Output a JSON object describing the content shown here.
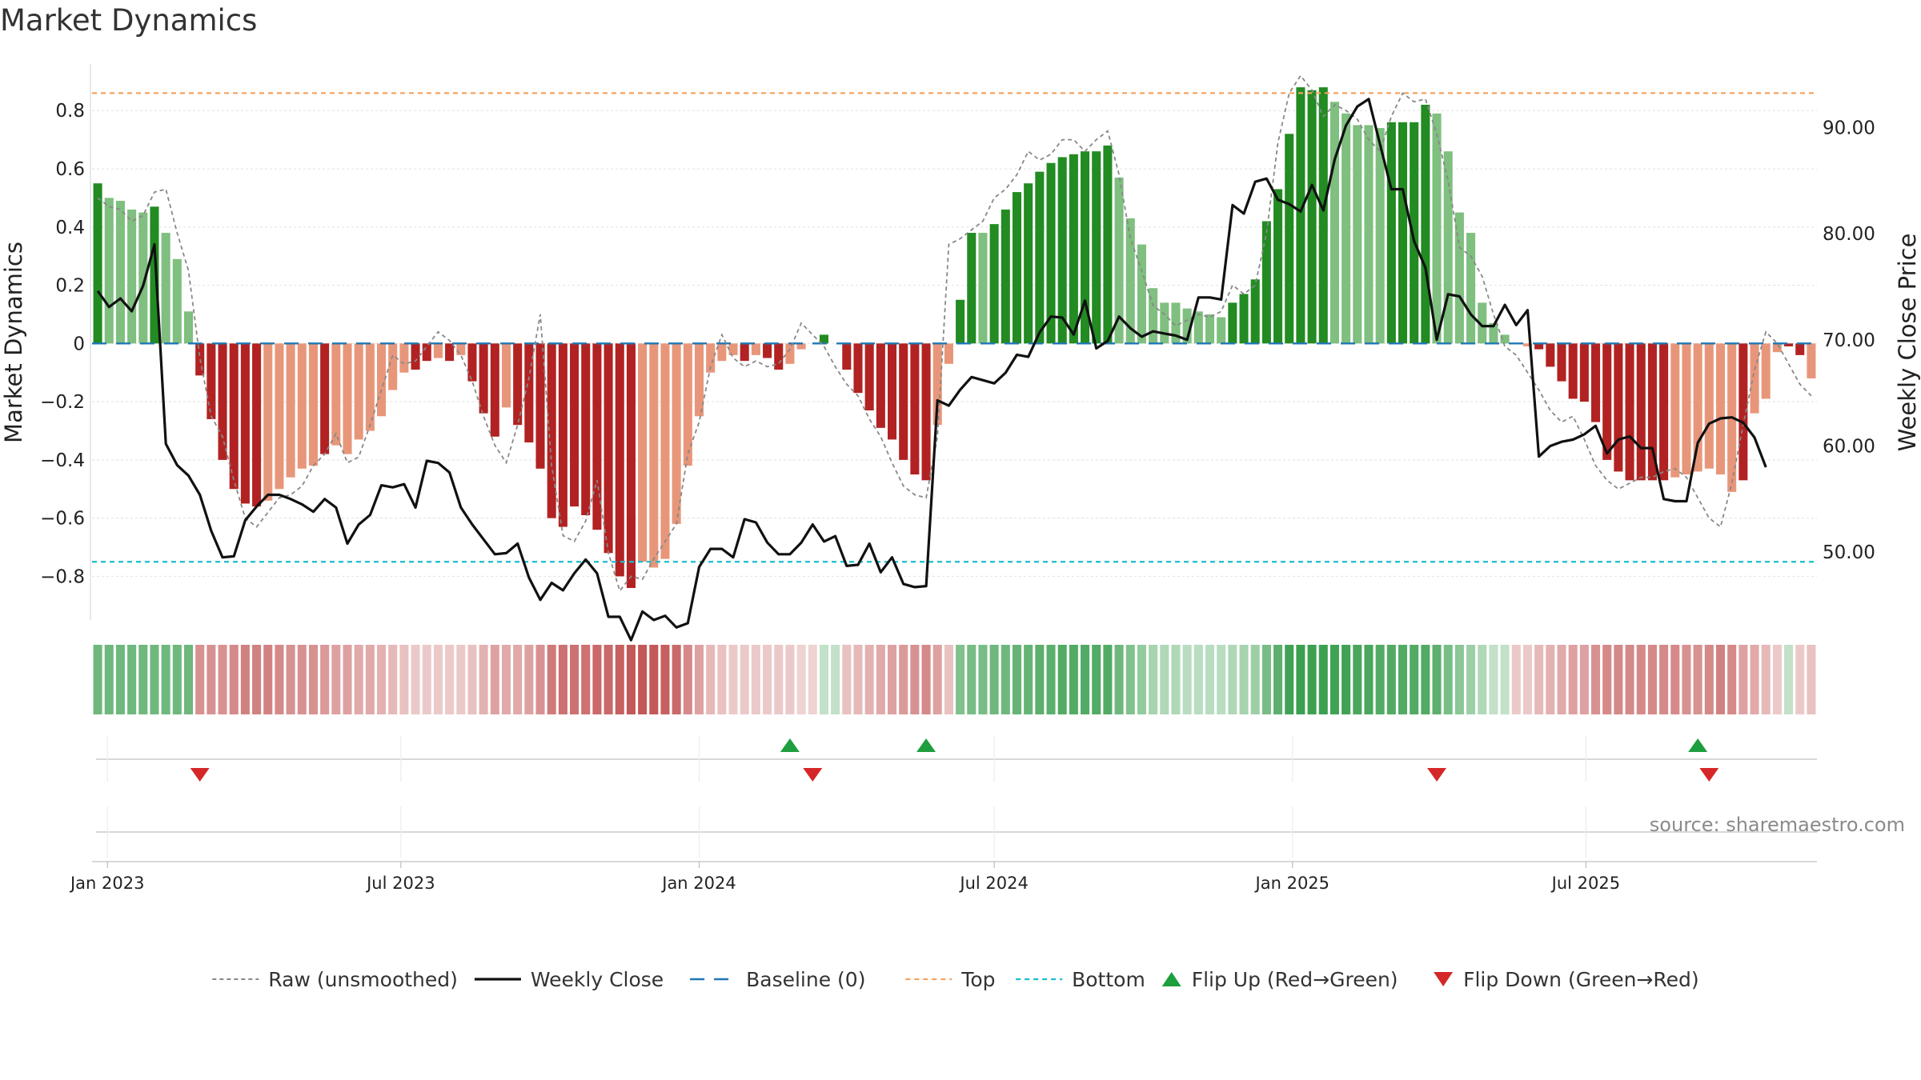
{
  "title": "Market Dynamics",
  "source": "source: sharemaestro.com",
  "colors": {
    "strong_green": "#228b22",
    "light_green": "#7fbf7f",
    "strong_red": "#b22222",
    "light_red": "#e8967a",
    "raw": "#888888",
    "close": "#111111",
    "baseline": "#1f77b4",
    "top": "#f4a460",
    "bottom": "#17becf",
    "flip_up": "#1e9e3e",
    "flip_down": "#d62728"
  },
  "chart_data": {
    "type": "bar",
    "title": "Market Dynamics",
    "ylabel": "Market Dynamics",
    "ylabel_right": "Weekly Close Price",
    "ylim": [
      -0.95,
      0.96
    ],
    "ylim_right": [
      43.6,
      96.0
    ],
    "yticks": [
      0.8,
      0.6,
      0.4,
      0.2,
      0,
      -0.2,
      -0.4,
      -0.6,
      -0.8
    ],
    "ytick_labels": [
      "0.8",
      "0.6",
      "0.4",
      "0.2",
      "0",
      "−0.2",
      "−0.4",
      "−0.6",
      "−0.8"
    ],
    "yticks_right": [
      90,
      80,
      70,
      60,
      50
    ],
    "ytick_right_labels": [
      "90.00",
      "80.00",
      "70.00",
      "60.00",
      "50.00"
    ],
    "x_start": "2022-12-26",
    "x_step_days": 7,
    "xticks": [
      {
        "label": "Jan 2023",
        "date": "2023-01-01"
      },
      {
        "label": "Jul 2023",
        "date": "2023-07-01"
      },
      {
        "label": "Jan 2024",
        "date": "2024-01-01"
      },
      {
        "label": "Jul 2024",
        "date": "2024-07-01"
      },
      {
        "label": "Jan 2025",
        "date": "2025-01-01"
      },
      {
        "label": "Jul 2025",
        "date": "2025-07-01"
      }
    ],
    "top_line": 0.86,
    "bottom_line": -0.75,
    "baseline": 0,
    "grid": true,
    "legend_position": "bottom",
    "bars": [
      0.55,
      0.5,
      0.49,
      0.46,
      0.45,
      0.47,
      0.38,
      0.29,
      0.11,
      -0.11,
      -0.26,
      -0.4,
      -0.5,
      -0.55,
      -0.56,
      -0.54,
      -0.5,
      -0.46,
      -0.43,
      -0.42,
      -0.38,
      -0.35,
      -0.38,
      -0.33,
      -0.3,
      -0.25,
      -0.16,
      -0.1,
      -0.09,
      -0.06,
      -0.05,
      -0.06,
      -0.04,
      -0.13,
      -0.24,
      -0.32,
      -0.22,
      -0.28,
      -0.34,
      -0.43,
      -0.6,
      -0.63,
      -0.56,
      -0.59,
      -0.64,
      -0.72,
      -0.8,
      -0.84,
      -0.75,
      -0.77,
      -0.74,
      -0.62,
      -0.42,
      -0.25,
      -0.1,
      -0.06,
      -0.04,
      -0.06,
      -0.04,
      -0.05,
      -0.09,
      -0.07,
      -0.02,
      0.0,
      0.03,
      0.0,
      -0.09,
      -0.17,
      -0.23,
      -0.29,
      -0.33,
      -0.4,
      -0.45,
      -0.47,
      -0.28,
      -0.07,
      0.15,
      0.38,
      0.38,
      0.41,
      0.46,
      0.52,
      0.55,
      0.59,
      0.62,
      0.64,
      0.65,
      0.66,
      0.66,
      0.68,
      0.57,
      0.43,
      0.34,
      0.19,
      0.14,
      0.14,
      0.12,
      0.11,
      0.1,
      0.09,
      0.14,
      0.17,
      0.22,
      0.42,
      0.53,
      0.72,
      0.88,
      0.87,
      0.88,
      0.83,
      0.79,
      0.75,
      0.75,
      0.74,
      0.76,
      0.76,
      0.76,
      0.82,
      0.79,
      0.66,
      0.45,
      0.38,
      0.14,
      0.07,
      0.03,
      0.0,
      -0.01,
      -0.02,
      -0.08,
      -0.13,
      -0.19,
      -0.2,
      -0.27,
      -0.4,
      -0.44,
      -0.47,
      -0.47,
      -0.47,
      -0.47,
      -0.46,
      -0.45,
      -0.44,
      -0.43,
      -0.45,
      -0.51,
      -0.47,
      -0.24,
      -0.19,
      -0.03,
      -0.01,
      -0.04,
      -0.12
    ],
    "bar_strong": [
      1,
      0,
      0,
      0,
      0,
      1,
      0,
      0,
      0,
      1,
      1,
      1,
      1,
      1,
      1,
      0,
      0,
      0,
      0,
      0,
      1,
      0,
      0,
      0,
      0,
      0,
      0,
      0,
      1,
      1,
      0,
      1,
      0,
      1,
      1,
      1,
      0,
      1,
      1,
      1,
      1,
      1,
      1,
      1,
      1,
      1,
      1,
      1,
      0,
      0,
      0,
      0,
      0,
      0,
      0,
      0,
      0,
      1,
      0,
      1,
      1,
      0,
      0,
      0,
      1,
      0,
      1,
      1,
      1,
      1,
      1,
      1,
      1,
      1,
      0,
      0,
      1,
      1,
      0,
      1,
      1,
      1,
      1,
      1,
      1,
      1,
      1,
      1,
      1,
      1,
      0,
      0,
      0,
      0,
      0,
      0,
      0,
      0,
      0,
      0,
      1,
      1,
      1,
      1,
      1,
      1,
      1,
      1,
      1,
      0,
      0,
      0,
      0,
      0,
      1,
      1,
      1,
      1,
      0,
      0,
      0,
      0,
      0,
      0,
      0,
      0,
      0,
      1,
      1,
      1,
      1,
      1,
      1,
      1,
      1,
      1,
      1,
      1,
      1,
      0,
      0,
      0,
      0,
      0,
      0,
      1,
      0,
      0,
      0,
      1,
      1
    ],
    "raw": [
      0.5,
      0.47,
      0.46,
      0.42,
      0.44,
      0.52,
      0.53,
      0.38,
      0.25,
      -0.05,
      -0.25,
      -0.32,
      -0.47,
      -0.6,
      -0.63,
      -0.58,
      -0.53,
      -0.52,
      -0.49,
      -0.42,
      -0.38,
      -0.31,
      -0.41,
      -0.39,
      -0.28,
      -0.16,
      -0.04,
      -0.07,
      -0.06,
      -0.01,
      0.04,
      0.01,
      -0.04,
      -0.13,
      -0.25,
      -0.35,
      -0.41,
      -0.28,
      -0.12,
      0.1,
      -0.42,
      -0.66,
      -0.68,
      -0.61,
      -0.47,
      -0.72,
      -0.85,
      -0.8,
      -0.81,
      -0.74,
      -0.68,
      -0.62,
      -0.38,
      -0.27,
      -0.08,
      0.03,
      -0.05,
      -0.08,
      -0.06,
      -0.08,
      -0.07,
      -0.02,
      0.07,
      0.03,
      -0.01,
      -0.08,
      -0.14,
      -0.18,
      -0.26,
      -0.32,
      -0.41,
      -0.49,
      -0.52,
      -0.53,
      -0.32,
      0.34,
      0.36,
      0.39,
      0.42,
      0.5,
      0.53,
      0.58,
      0.66,
      0.63,
      0.65,
      0.7,
      0.7,
      0.66,
      0.7,
      0.73,
      0.58,
      0.36,
      0.25,
      0.13,
      0.1,
      0.06,
      0.08,
      0.1,
      0.09,
      0.11,
      0.2,
      0.17,
      0.2,
      0.38,
      0.69,
      0.86,
      0.92,
      0.87,
      0.78,
      0.82,
      0.8,
      0.77,
      0.7,
      0.66,
      0.78,
      0.86,
      0.83,
      0.84,
      0.72,
      0.56,
      0.33,
      0.3,
      0.23,
      0.1,
      -0.01,
      -0.04,
      -0.1,
      -0.16,
      -0.23,
      -0.27,
      -0.25,
      -0.33,
      -0.42,
      -0.47,
      -0.5,
      -0.48,
      -0.46,
      -0.46,
      -0.44,
      -0.43,
      -0.46,
      -0.53,
      -0.6,
      -0.63,
      -0.48,
      -0.28,
      -0.09,
      0.04,
      0.0,
      -0.07,
      -0.14,
      -0.18
    ],
    "close": [
      74.6,
      73.1,
      73.9,
      72.7,
      75.1,
      79.0,
      60.2,
      58.2,
      57.2,
      55.4,
      52.0,
      49.5,
      49.6,
      53.0,
      54.3,
      55.4,
      55.4,
      55.0,
      54.5,
      53.8,
      55.0,
      54.2,
      50.8,
      52.6,
      53.5,
      56.3,
      56.1,
      56.4,
      54.2,
      58.6,
      58.4,
      57.5,
      54.2,
      52.6,
      51.2,
      49.8,
      49.9,
      50.8,
      47.6,
      45.5,
      47.1,
      46.4,
      48.0,
      49.3,
      48.0,
      43.9,
      43.9,
      41.7,
      44.4,
      43.6,
      44.0,
      42.9,
      43.3,
      48.6,
      50.3,
      50.3,
      49.5,
      53.1,
      52.8,
      50.9,
      49.8,
      49.8,
      50.9,
      52.6,
      51.0,
      51.5,
      48.7,
      48.8,
      50.8,
      48.1,
      49.5,
      47.0,
      46.7,
      46.8,
      64.3,
      63.8,
      65.3,
      66.5,
      66.2,
      65.9,
      66.9,
      68.6,
      68.4,
      70.7,
      72.2,
      72.1,
      70.5,
      73.7,
      69.2,
      69.9,
      72.2,
      71.1,
      70.3,
      70.8,
      70.6,
      70.4,
      70.0,
      74.0,
      74.0,
      73.8,
      82.7,
      81.9,
      84.9,
      85.2,
      83.2,
      82.8,
      82.1,
      84.6,
      82.2,
      87.0,
      90.2,
      92.0,
      92.7,
      88.4,
      84.2,
      84.2,
      79.3,
      76.8,
      70.0,
      74.3,
      74.1,
      72.4,
      71.3,
      71.3,
      73.3,
      71.4,
      72.8,
      59.0,
      60.0,
      60.4,
      60.6,
      61.1,
      61.9,
      59.3,
      60.6,
      60.9,
      59.8,
      59.8,
      55.0,
      54.8,
      54.8,
      60.3,
      62.1,
      62.6,
      62.7,
      62.2,
      60.8,
      58.0
    ],
    "heat_strip": [
      0.55,
      0.55,
      0.55,
      0.55,
      0.55,
      0.55,
      0.55,
      0.55,
      0.55,
      -0.45,
      -0.45,
      -0.45,
      -0.5,
      -0.55,
      -0.55,
      -0.55,
      -0.5,
      -0.45,
      -0.45,
      -0.45,
      -0.4,
      -0.35,
      -0.35,
      -0.3,
      -0.3,
      -0.25,
      -0.2,
      -0.15,
      -0.1,
      -0.1,
      -0.1,
      -0.1,
      -0.1,
      -0.15,
      -0.25,
      -0.35,
      -0.3,
      -0.3,
      -0.35,
      -0.45,
      -0.6,
      -0.65,
      -0.65,
      -0.65,
      -0.7,
      -0.7,
      -0.75,
      -0.8,
      -0.8,
      -0.8,
      -0.75,
      -0.7,
      -0.5,
      -0.35,
      -0.2,
      -0.15,
      -0.1,
      -0.1,
      -0.1,
      -0.1,
      -0.1,
      -0.1,
      -0.05,
      -0.05,
      0.1,
      0.1,
      -0.15,
      -0.2,
      -0.25,
      -0.3,
      -0.35,
      -0.4,
      -0.45,
      -0.5,
      -0.35,
      -0.15,
      0.45,
      0.5,
      0.5,
      0.55,
      0.55,
      0.6,
      0.6,
      0.65,
      0.65,
      0.7,
      0.7,
      0.7,
      0.7,
      0.7,
      0.55,
      0.45,
      0.35,
      0.25,
      0.2,
      0.2,
      0.15,
      0.15,
      0.15,
      0.15,
      0.2,
      0.25,
      0.3,
      0.5,
      0.65,
      0.8,
      0.85,
      0.85,
      0.85,
      0.8,
      0.8,
      0.75,
      0.75,
      0.7,
      0.7,
      0.7,
      0.7,
      0.7,
      0.65,
      0.5,
      0.4,
      0.3,
      0.2,
      0.1,
      0.1,
      -0.1,
      -0.1,
      -0.2,
      -0.25,
      -0.3,
      -0.35,
      -0.35,
      -0.45,
      -0.5,
      -0.5,
      -0.5,
      -0.5,
      -0.5,
      -0.5,
      -0.5,
      -0.45,
      -0.45,
      -0.5,
      -0.55,
      -0.5,
      -0.35,
      -0.3,
      -0.2,
      -0.1,
      0.1,
      -0.1,
      -0.15
    ],
    "flip_up_index": [
      61,
      73,
      141
    ],
    "flip_down_index": [
      9,
      63,
      118,
      142
    ],
    "legend": [
      {
        "label": "Raw (unsmoothed)",
        "key": "raw"
      },
      {
        "label": "Weekly Close",
        "key": "close"
      },
      {
        "label": "Baseline (0)",
        "key": "baseline"
      },
      {
        "label": "Top",
        "key": "top"
      },
      {
        "label": "Bottom",
        "key": "bottom"
      },
      {
        "label": "Flip Up (Red→Green)",
        "key": "flip_up"
      },
      {
        "label": "Flip Down (Green→Red)",
        "key": "flip_down"
      }
    ]
  }
}
